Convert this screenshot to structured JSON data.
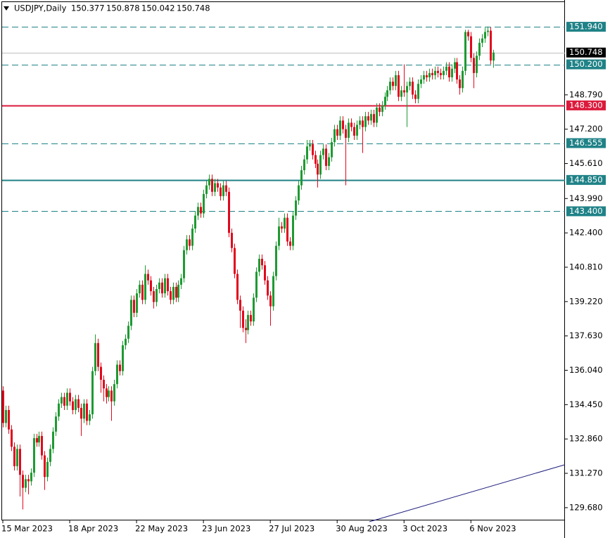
{
  "chart_data": {
    "type": "candlestick",
    "title": "USDJPY,Daily",
    "categories": [
      "15 Mar 2023",
      null,
      null,
      null,
      null,
      null,
      null,
      null,
      null,
      null,
      null,
      null,
      null,
      null,
      null,
      null,
      null,
      null,
      null,
      null,
      null,
      null,
      null,
      null,
      "18 Apr 2023",
      null,
      null,
      null,
      null,
      null,
      null,
      null,
      null,
      null,
      null,
      null,
      null,
      null,
      null,
      null,
      null,
      null,
      null,
      null,
      null,
      null,
      null,
      null,
      "22 May 2023",
      null,
      null,
      null,
      null,
      null,
      null,
      null,
      null,
      null,
      null,
      null,
      null,
      null,
      null,
      null,
      null,
      null,
      null,
      null,
      null,
      null,
      null,
      null,
      "23 Jun 2023",
      null,
      null,
      null,
      null,
      null,
      null,
      null,
      null,
      null,
      null,
      null,
      null,
      null,
      null,
      null,
      null,
      null,
      null,
      null,
      null,
      null,
      null,
      null,
      "27 Jul 2023",
      null,
      null,
      null,
      null,
      null,
      null,
      null,
      null,
      null,
      null,
      null,
      null,
      null,
      null,
      null,
      null,
      null,
      null,
      null,
      null,
      null,
      null,
      null,
      "30 Aug 2023",
      null,
      null,
      null,
      null,
      null,
      null,
      null,
      null,
      null,
      null,
      null,
      null,
      null,
      null,
      null,
      null,
      null,
      null,
      null,
      null,
      null,
      null,
      null,
      "3 Oct 2023",
      null,
      null,
      null,
      null,
      null,
      null,
      null,
      null,
      null,
      null,
      null,
      null,
      null,
      null,
      null,
      null,
      null,
      null,
      null,
      null,
      null,
      null,
      null,
      "6 Nov 2023",
      null,
      null,
      null,
      null,
      null,
      null,
      null,
      null
    ],
    "open": [
      135.1,
      133.6,
      134.2,
      133.3,
      132.5,
      131.6,
      132.4,
      131.2,
      130.6,
      131.0,
      130.9,
      131.3,
      132.9,
      132.7,
      133.0,
      132.1,
      131.1,
      131.8,
      132.4,
      133.2,
      133.9,
      134.5,
      134.8,
      134.4,
      135.0,
      134.6,
      134.2,
      134.7,
      134.3,
      133.8,
      134.5,
      133.7,
      134.0,
      136.0,
      137.3,
      136.2,
      135.6,
      135.2,
      134.8,
      135.1,
      134.6,
      135.4,
      136.3,
      136.0,
      137.2,
      137.5,
      138.1,
      139.3,
      138.7,
      139.6,
      140.0,
      139.3,
      140.5,
      140.2,
      139.7,
      139.2,
      139.8,
      140.1,
      139.6,
      140.3,
      139.7,
      139.3,
      139.9,
      139.4,
      140.0,
      140.3,
      141.6,
      142.1,
      141.8,
      142.6,
      143.2,
      143.6,
      143.3,
      144.2,
      144.6,
      144.9,
      144.3,
      144.7,
      144.5,
      144.1,
      144.6,
      144.3,
      142.4,
      141.7,
      140.5,
      139.3,
      138.8,
      138.0,
      137.9,
      138.6,
      138.3,
      139.4,
      140.6,
      141.2,
      140.9,
      140.2,
      139.5,
      139.0,
      140.4,
      141.8,
      142.7,
      142.6,
      143.1,
      142.0,
      141.8,
      143.2,
      143.9,
      144.6,
      145.3,
      145.8,
      146.4,
      146.5,
      146.0,
      145.6,
      145.1,
      146.0,
      146.3,
      145.5,
      145.9,
      146.6,
      147.2,
      146.9,
      147.6,
      147.2,
      146.8,
      147.5,
      147.3,
      146.9,
      147.4,
      147.6,
      147.3,
      147.8,
      147.6,
      147.9,
      147.5,
      148.2,
      148.0,
      148.3,
      148.7,
      149.0,
      149.4,
      149.2,
      149.7,
      148.7,
      149.0,
      148.9,
      149.2,
      149.4,
      148.8,
      148.6,
      149.3,
      149.5,
      149.7,
      149.6,
      149.8,
      149.7,
      149.9,
      149.8,
      149.7,
      149.9,
      150.1,
      149.6,
      150.0,
      150.3,
      149.5,
      149.1,
      149.9,
      151.7,
      151.5,
      150.5,
      149.8,
      150.6,
      151.2,
      151.4,
      151.7,
      151.76,
      150.377
    ],
    "high": [
      135.3,
      134.4,
      134.4,
      133.5,
      132.7,
      132.6,
      132.6,
      131.4,
      131.2,
      131.2,
      131.5,
      133.1,
      133.1,
      133.2,
      133.2,
      132.3,
      132.0,
      132.6,
      133.4,
      134.1,
      134.7,
      135.0,
      135.0,
      135.2,
      135.2,
      134.8,
      134.9,
      134.9,
      134.5,
      134.7,
      134.7,
      134.2,
      136.2,
      137.7,
      137.5,
      136.4,
      135.8,
      135.4,
      135.3,
      135.3,
      135.6,
      136.5,
      136.5,
      137.4,
      137.7,
      138.3,
      139.5,
      139.5,
      139.8,
      140.2,
      140.2,
      140.9,
      140.7,
      140.4,
      139.9,
      140.0,
      140.3,
      140.3,
      140.5,
      140.5,
      139.9,
      140.1,
      140.1,
      140.2,
      140.5,
      141.8,
      142.3,
      142.3,
      142.8,
      143.4,
      143.8,
      143.8,
      144.4,
      144.8,
      145.1,
      145.1,
      144.9,
      144.9,
      144.7,
      144.8,
      144.8,
      144.5,
      142.6,
      141.9,
      140.7,
      139.5,
      139.0,
      138.4,
      138.8,
      138.8,
      139.6,
      140.8,
      141.4,
      141.4,
      141.1,
      140.4,
      139.7,
      140.6,
      142.0,
      143.1,
      142.9,
      143.3,
      143.3,
      142.2,
      143.4,
      144.1,
      144.8,
      145.5,
      146.0,
      146.7,
      146.7,
      146.7,
      146.2,
      145.8,
      146.2,
      146.5,
      146.5,
      146.1,
      146.8,
      147.4,
      147.4,
      147.8,
      147.8,
      147.4,
      147.7,
      147.7,
      147.5,
      147.6,
      147.8,
      147.8,
      148.0,
      148.0,
      148.1,
      148.1,
      148.4,
      148.4,
      148.5,
      148.9,
      149.2,
      149.6,
      149.6,
      149.9,
      149.9,
      149.2,
      150.2,
      149.4,
      149.6,
      149.6,
      149.0,
      149.5,
      149.7,
      149.9,
      149.9,
      150.0,
      150.0,
      150.1,
      150.1,
      150.0,
      150.1,
      150.3,
      150.3,
      150.2,
      150.5,
      150.5,
      149.7,
      150.1,
      151.8,
      151.8,
      151.7,
      150.7,
      150.8,
      151.4,
      151.6,
      151.9,
      151.95,
      151.92,
      150.878
    ],
    "low": [
      133.4,
      133.4,
      133.1,
      132.3,
      131.4,
      131.4,
      130.2,
      129.6,
      130.4,
      130.3,
      130.7,
      131.1,
      132.5,
      132.5,
      131.9,
      130.5,
      130.9,
      131.6,
      132.2,
      133.0,
      133.7,
      134.3,
      134.2,
      134.2,
      134.4,
      134.0,
      134.0,
      134.1,
      133.0,
      133.6,
      133.5,
      133.5,
      133.8,
      135.8,
      136.0,
      135.0,
      134.6,
      134.5,
      134.6,
      133.7,
      134.4,
      135.2,
      135.8,
      135.8,
      137.0,
      137.3,
      137.9,
      138.5,
      138.5,
      139.4,
      139.1,
      139.1,
      140.0,
      139.5,
      138.9,
      139.0,
      139.6,
      139.4,
      139.4,
      139.5,
      139.1,
      139.1,
      139.2,
      139.2,
      139.8,
      140.1,
      141.4,
      141.6,
      141.6,
      142.4,
      143.0,
      143.1,
      143.1,
      144.0,
      144.4,
      144.1,
      144.1,
      144.3,
      143.9,
      143.9,
      144.1,
      142.2,
      141.5,
      140.3,
      139.1,
      138.0,
      137.8,
      137.3,
      137.7,
      138.1,
      138.1,
      139.2,
      140.4,
      140.7,
      140.0,
      139.3,
      138.1,
      138.8,
      140.2,
      141.6,
      142.4,
      142.4,
      141.8,
      141.6,
      141.6,
      143.0,
      143.7,
      144.4,
      145.1,
      145.6,
      146.2,
      145.8,
      145.4,
      144.5,
      144.9,
      145.8,
      145.3,
      145.3,
      145.7,
      146.4,
      146.7,
      146.7,
      147.0,
      144.6,
      146.6,
      147.1,
      146.7,
      146.7,
      147.2,
      146.1,
      147.1,
      147.4,
      147.4,
      147.3,
      147.3,
      147.8,
      147.8,
      148.1,
      148.5,
      148.8,
      149.0,
      149.0,
      148.5,
      148.5,
      148.7,
      147.3,
      149.0,
      148.6,
      148.4,
      148.4,
      149.1,
      149.3,
      149.4,
      149.4,
      149.5,
      149.5,
      149.6,
      149.5,
      149.5,
      149.7,
      149.4,
      149.4,
      149.8,
      149.3,
      148.8,
      148.9,
      149.7,
      151.3,
      150.3,
      149.1,
      149.6,
      150.4,
      151.0,
      151.2,
      151.5,
      150.2,
      150.042
    ],
    "close": [
      133.6,
      134.2,
      133.3,
      132.5,
      131.6,
      132.4,
      131.2,
      130.6,
      131.0,
      130.9,
      131.3,
      132.9,
      132.7,
      133.0,
      132.1,
      131.1,
      131.8,
      132.4,
      133.2,
      133.9,
      134.5,
      134.8,
      134.4,
      135.0,
      134.6,
      134.2,
      134.7,
      134.3,
      133.8,
      134.5,
      133.7,
      134.0,
      136.0,
      137.3,
      136.2,
      135.6,
      135.2,
      134.8,
      135.1,
      134.6,
      135.4,
      136.3,
      136.0,
      137.2,
      137.5,
      138.1,
      139.3,
      138.7,
      139.6,
      140.0,
      139.3,
      140.5,
      140.2,
      139.7,
      139.2,
      139.8,
      140.1,
      139.6,
      140.3,
      139.7,
      139.3,
      139.9,
      139.4,
      140.0,
      140.3,
      141.6,
      142.1,
      141.8,
      142.6,
      143.2,
      143.6,
      143.3,
      144.2,
      144.6,
      144.9,
      144.3,
      144.7,
      144.5,
      144.1,
      144.6,
      144.3,
      142.4,
      141.7,
      140.5,
      139.3,
      138.8,
      138.0,
      137.9,
      138.6,
      138.3,
      139.4,
      140.6,
      141.2,
      140.9,
      140.2,
      139.5,
      139.0,
      140.4,
      141.8,
      142.7,
      142.6,
      143.1,
      142.0,
      141.8,
      143.2,
      143.9,
      144.6,
      145.3,
      145.8,
      146.4,
      146.5,
      146.0,
      145.6,
      145.1,
      146.0,
      146.3,
      145.5,
      145.9,
      146.6,
      147.2,
      146.9,
      147.6,
      147.2,
      146.8,
      147.5,
      147.3,
      146.9,
      147.4,
      147.6,
      147.3,
      147.8,
      147.6,
      147.9,
      147.5,
      148.2,
      148.0,
      148.3,
      148.7,
      149.0,
      149.4,
      149.2,
      149.7,
      148.7,
      149.0,
      148.9,
      149.2,
      149.4,
      148.8,
      148.6,
      149.3,
      149.5,
      149.7,
      149.6,
      149.8,
      149.7,
      149.9,
      149.8,
      149.7,
      149.9,
      150.1,
      149.6,
      150.0,
      150.3,
      149.5,
      149.1,
      149.9,
      151.7,
      151.5,
      150.5,
      149.8,
      150.6,
      151.2,
      151.4,
      151.7,
      151.76,
      150.38,
      150.748
    ],
    "up_color": "#1e9a32",
    "down_color": "#e0081c",
    "ylim": [
      129.09,
      153.18
    ],
    "yticks": [
      {
        "value": 148.79,
        "label": "148.790"
      },
      {
        "value": 147.2,
        "label": "147.200"
      },
      {
        "value": 145.61,
        "label": "145.610"
      },
      {
        "value": 143.99,
        "label": "143.990"
      },
      {
        "value": 142.4,
        "label": "142.400"
      },
      {
        "value": 140.81,
        "label": "140.810"
      },
      {
        "value": 139.22,
        "label": "139.220"
      },
      {
        "value": 137.63,
        "label": "137.630"
      },
      {
        "value": 136.04,
        "label": "136.040"
      },
      {
        "value": 134.45,
        "label": "134.450"
      },
      {
        "value": 132.86,
        "label": "132.860"
      },
      {
        "value": 131.27,
        "label": "131.270"
      },
      {
        "value": 129.68,
        "label": "129.680"
      }
    ],
    "levels": [
      {
        "value": 151.94,
        "label": "151.940",
        "color": "#1f8287",
        "style": "dashed"
      },
      {
        "value": 150.2,
        "label": "150.200",
        "color": "#1f8287",
        "style": "dashed"
      },
      {
        "value": 148.3,
        "label": "148.300",
        "color": "#dc1a3c",
        "style": "solid"
      },
      {
        "value": 146.555,
        "label": "146.555",
        "color": "#1f8287",
        "style": "dashed"
      },
      {
        "value": 144.85,
        "label": "144.850",
        "color": "#1f8287",
        "style": "solid"
      },
      {
        "value": 143.4,
        "label": "143.400",
        "color": "#1f8287",
        "style": "dashed"
      }
    ],
    "price_line_color": "#c0c0c0",
    "trendline": {
      "start": 129.03,
      "end": 131.67,
      "color": "#1c1c7c"
    }
  }
}
